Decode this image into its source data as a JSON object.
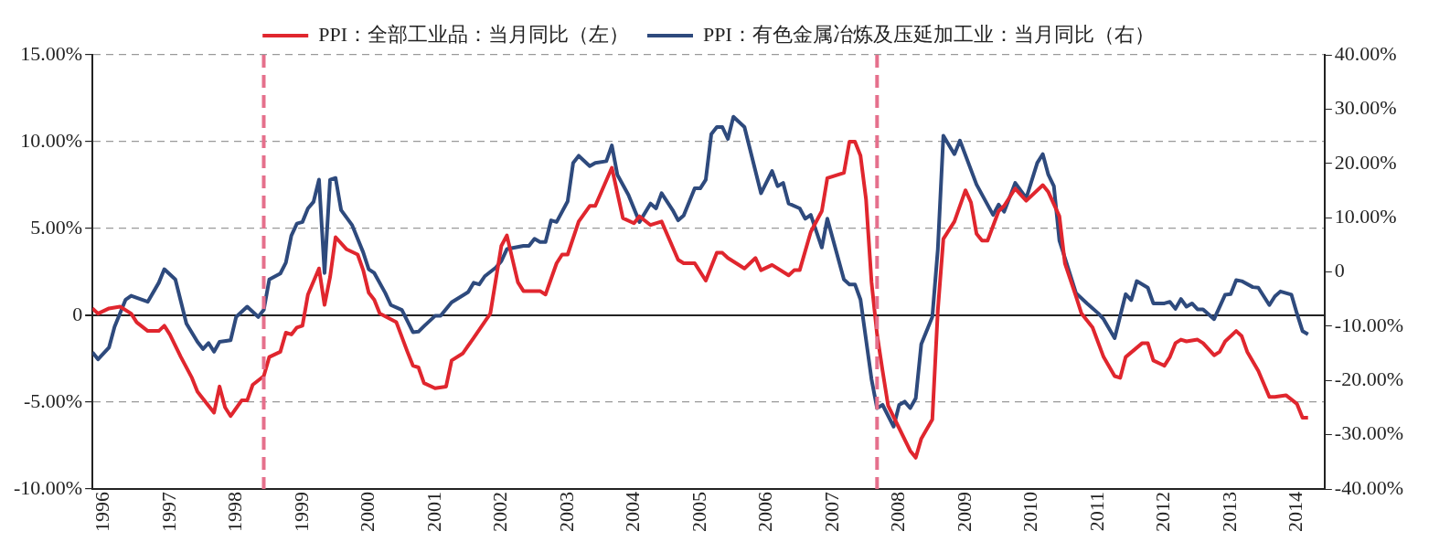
{
  "chart_data": {
    "type": "line",
    "legend": "top",
    "grid": "y",
    "line_style": "solid",
    "marker": "none",
    "xlim": [
      "1996-01",
      "2014-08"
    ],
    "xticks": [
      {
        "value": "1996-03",
        "label": "1996"
      },
      {
        "value": "1997-03",
        "label": "1997"
      },
      {
        "value": "1998-03",
        "label": "1998"
      },
      {
        "value": "1999-03",
        "label": "1999"
      },
      {
        "value": "2000-03",
        "label": "2000"
      },
      {
        "value": "2001-03",
        "label": "2001"
      },
      {
        "value": "2002-03",
        "label": "2002"
      },
      {
        "value": "2003-03",
        "label": "2003"
      },
      {
        "value": "2004-03",
        "label": "2004"
      },
      {
        "value": "2005-03",
        "label": "2005"
      },
      {
        "value": "2006-03",
        "label": "2006"
      },
      {
        "value": "2007-03",
        "label": "2007"
      },
      {
        "value": "2008-03",
        "label": "2008"
      },
      {
        "value": "2009-03",
        "label": "2009"
      },
      {
        "value": "2010-03",
        "label": "2010"
      },
      {
        "value": "2011-03",
        "label": "2011"
      },
      {
        "value": "2012-03",
        "label": "2012"
      },
      {
        "value": "2013-03",
        "label": "2013"
      },
      {
        "value": "2014-03",
        "label": "2014"
      }
    ],
    "ylim": [
      -10,
      15
    ],
    "yticks": [
      {
        "value": -10,
        "label": "-10.00%"
      },
      {
        "value": -5,
        "label": "-5.00%"
      },
      0,
      {
        "value": 5,
        "label": "5.00%"
      },
      {
        "value": 10,
        "label": "10.00%"
      },
      {
        "value": 15,
        "label": "15.00%"
      }
    ],
    "y2lim": [
      -40,
      40
    ],
    "y2ticks": [
      {
        "value": -40,
        "label": "-40.00%"
      },
      {
        "value": -30,
        "label": "-30.00%"
      },
      {
        "value": -20,
        "label": "-20.00%"
      },
      {
        "value": -10,
        "label": "-10.00%"
      },
      0,
      {
        "value": 10,
        "label": "10.00%"
      },
      {
        "value": 20,
        "label": "20.00%"
      },
      {
        "value": 30,
        "label": "30.00%"
      },
      {
        "value": 40,
        "label": "40.00%"
      }
    ],
    "ref_lines": [
      {
        "axis": "x",
        "value": "1998-08",
        "color": "#e5708c",
        "line_style": "dashed"
      },
      {
        "axis": "x",
        "value": "2007-11",
        "color": "#e5708c",
        "line_style": "dashed"
      }
    ],
    "series": [
      {
        "name": "PPI：全部工业品：当月同比（左）",
        "color": "#e0262e",
        "x": [
          "1996-01",
          "1996-02",
          "1996-04",
          "1996-06",
          "1996-08",
          "1996-09",
          "1996-11",
          "1997-01",
          "1997-02",
          "1997-03",
          "1997-05",
          "1997-07",
          "1997-08",
          "1997-09",
          "1997-11",
          "1997-12",
          "1998-01",
          "1998-02",
          "1998-04",
          "1998-05",
          "1998-06",
          "1998-08",
          "1998-09",
          "1998-11",
          "1998-12",
          "1999-01",
          "1999-02",
          "1999-03",
          "1999-04",
          "1999-06",
          "1999-07",
          "1999-08",
          "1999-09",
          "1999-11",
          "2000-01",
          "2000-02",
          "2000-03",
          "2000-04",
          "2000-05",
          "2000-08",
          "2000-10",
          "2000-11",
          "2000-12",
          "2001-01",
          "2001-03",
          "2001-05",
          "2001-06",
          "2001-08",
          "2001-10",
          "2002-01",
          "2002-03",
          "2002-04",
          "2002-06",
          "2002-07",
          "2002-10",
          "2002-11",
          "2003-01",
          "2003-02",
          "2003-03",
          "2003-05",
          "2003-07",
          "2003-08",
          "2003-11",
          "2004-01",
          "2004-03",
          "2004-04",
          "2004-06",
          "2004-08",
          "2004-11",
          "2004-12",
          "2005-02",
          "2005-04",
          "2005-06",
          "2005-07",
          "2005-08",
          "2005-11",
          "2006-01",
          "2006-02",
          "2006-04",
          "2006-07",
          "2006-08",
          "2006-09",
          "2006-11",
          "2007-01",
          "2007-02",
          "2007-05",
          "2007-06",
          "2007-07",
          "2007-08",
          "2007-09",
          "2007-10",
          "2007-11",
          "2007-12",
          "2008-01",
          "2008-03",
          "2008-05",
          "2008-06",
          "2008-07",
          "2008-09",
          "2008-10",
          "2008-11",
          "2009-01",
          "2009-03",
          "2009-04",
          "2009-05",
          "2009-06",
          "2009-07",
          "2009-09",
          "2009-10",
          "2009-12",
          "2010-02",
          "2010-05",
          "2010-06",
          "2010-08",
          "2010-09",
          "2010-11",
          "2010-12",
          "2011-02",
          "2011-04",
          "2011-06",
          "2011-07",
          "2011-08",
          "2011-11",
          "2011-12",
          "2012-01",
          "2012-03",
          "2012-04",
          "2012-05",
          "2012-06",
          "2012-07",
          "2012-09",
          "2012-10",
          "2012-12",
          "2013-01",
          "2013-02",
          "2013-04",
          "2013-05",
          "2013-06",
          "2013-08",
          "2013-10",
          "2013-11",
          "2014-01",
          "2014-03",
          "2014-04",
          "2014-05"
        ],
        "values": [
          0.4,
          0.1,
          0.4,
          0.5,
          0.1,
          -0.4,
          -0.9,
          -0.9,
          -0.6,
          -1.1,
          -2.4,
          -3.6,
          -4.4,
          -4.8,
          -5.6,
          -4.1,
          -5.3,
          -5.8,
          -4.9,
          -4.9,
          -4.0,
          -3.5,
          -2.4,
          -2.1,
          -1.0,
          -1.1,
          -0.7,
          -0.6,
          1.2,
          2.7,
          0.6,
          2.2,
          4.5,
          3.8,
          3.5,
          2.6,
          1.3,
          0.9,
          0.1,
          -0.4,
          -2.1,
          -2.9,
          -3.0,
          -3.9,
          -4.2,
          -4.1,
          -2.6,
          -2.2,
          -1.3,
          0.1,
          4.0,
          4.6,
          1.9,
          1.4,
          1.4,
          1.2,
          3.0,
          3.5,
          3.5,
          5.4,
          6.3,
          6.3,
          8.5,
          5.6,
          5.3,
          5.7,
          5.2,
          5.4,
          3.2,
          3.0,
          3.0,
          2.0,
          3.6,
          3.6,
          3.3,
          2.7,
          3.3,
          2.6,
          2.9,
          2.3,
          2.6,
          2.6,
          4.8,
          6.0,
          7.9,
          8.2,
          10.0,
          10.0,
          9.2,
          6.7,
          1.9,
          -1.1,
          -3.2,
          -5.2,
          -6.5,
          -7.8,
          -8.2,
          -7.1,
          -6.0,
          0.3,
          4.4,
          5.4,
          7.2,
          6.5,
          4.7,
          4.3,
          4.3,
          6.0,
          6.3,
          7.3,
          6.6,
          7.5,
          7.1,
          5.7,
          3.0,
          1.1,
          0.1,
          -0.7,
          -2.4,
          -3.5,
          -3.6,
          -2.4,
          -1.6,
          -1.6,
          -2.6,
          -2.9,
          -2.4,
          -1.6,
          -1.4,
          -1.5,
          -1.4,
          -1.6,
          -2.3,
          -2.1,
          -1.5,
          -0.9,
          -1.2,
          -2.1,
          -3.2,
          -4.7,
          -4.7,
          -4.6,
          -5.1,
          -5.9,
          -5.9
        ]
      },
      {
        "name": "PPI：有色金属冶炼及压延加工业：当月同比（右）",
        "color": "#2e4a7d",
        "axis": "y2",
        "x": [
          "1996-01",
          "1996-02",
          "1996-04",
          "1996-05",
          "1996-07",
          "1996-08",
          "1996-11",
          "1997-01",
          "1997-02",
          "1997-04",
          "1997-06",
          "1997-08",
          "1997-09",
          "1997-10",
          "1997-11",
          "1997-12",
          "1998-02",
          "1998-03",
          "1998-05",
          "1998-07",
          "1998-08",
          "1998-09",
          "1998-11",
          "1998-12",
          "1999-01",
          "1999-02",
          "1999-03",
          "1999-04",
          "1999-05",
          "1999-06",
          "1999-07",
          "1999-08",
          "1999-09",
          "1999-10",
          "1999-12",
          "2000-02",
          "2000-03",
          "2000-04",
          "2000-06",
          "2000-07",
          "2000-09",
          "2000-11",
          "2000-12",
          "2001-01",
          "2001-03",
          "2001-04",
          "2001-06",
          "2001-09",
          "2001-10",
          "2001-11",
          "2001-12",
          "2002-02",
          "2002-03",
          "2002-04",
          "2002-07",
          "2002-08",
          "2002-09",
          "2002-10",
          "2002-11",
          "2002-12",
          "2003-01",
          "2003-03",
          "2003-04",
          "2003-05",
          "2003-07",
          "2003-08",
          "2003-10",
          "2003-11",
          "2003-12",
          "2004-02",
          "2004-04",
          "2004-06",
          "2004-07",
          "2004-08",
          "2004-10",
          "2004-11",
          "2004-12",
          "2005-02",
          "2005-03",
          "2005-04",
          "2005-05",
          "2005-06",
          "2005-07",
          "2005-08",
          "2005-09",
          "2005-11",
          "2006-02",
          "2006-04",
          "2006-05",
          "2006-06",
          "2006-07",
          "2006-09",
          "2006-10",
          "2006-11",
          "2007-01",
          "2007-02",
          "2007-05",
          "2007-06",
          "2007-07",
          "2007-08",
          "2007-10",
          "2007-11",
          "2007-12",
          "2008-02",
          "2008-03",
          "2008-04",
          "2008-05",
          "2008-06",
          "2008-07",
          "2008-09",
          "2008-10",
          "2008-11",
          "2009-01",
          "2009-02",
          "2009-05",
          "2009-08",
          "2009-09",
          "2009-10",
          "2009-12",
          "2010-02",
          "2010-04",
          "2010-05",
          "2010-06",
          "2010-07",
          "2010-08",
          "2010-11",
          "2011-01",
          "2011-03",
          "2011-04",
          "2011-06",
          "2011-08",
          "2011-09",
          "2011-10",
          "2011-12",
          "2012-01",
          "2012-03",
          "2012-04",
          "2012-05",
          "2012-06",
          "2012-07",
          "2012-08",
          "2012-09",
          "2012-10",
          "2012-12",
          "2013-02",
          "2013-03",
          "2013-04",
          "2013-05",
          "2013-07",
          "2013-08",
          "2013-10",
          "2013-11",
          "2013-12",
          "2014-02",
          "2014-03",
          "2014-04",
          "2014-05"
        ],
        "values": [
          -14.8,
          -16.1,
          -13.9,
          -10.1,
          -5.1,
          -4.4,
          -5.5,
          -2.0,
          0.5,
          -1.4,
          -9.5,
          -12.9,
          -14.2,
          -13.1,
          -14.7,
          -12.9,
          -12.6,
          -8.3,
          -6.4,
          -8.3,
          -7.0,
          -1.4,
          -0.3,
          1.7,
          6.7,
          8.9,
          9.2,
          11.7,
          12.9,
          17.0,
          -0.2,
          17.0,
          17.3,
          11.4,
          8.6,
          3.6,
          0.5,
          -0.2,
          -3.9,
          -6.1,
          -7.0,
          -11.1,
          -11.0,
          -10.0,
          -8.1,
          -8.1,
          -5.6,
          -3.7,
          -2.0,
          -2.3,
          -0.8,
          0.8,
          2.0,
          4.2,
          4.8,
          4.8,
          6.1,
          5.5,
          5.5,
          9.5,
          9.2,
          13.0,
          20.1,
          21.4,
          19.5,
          20.1,
          20.4,
          23.3,
          17.9,
          14.2,
          9.2,
          12.6,
          11.7,
          14.5,
          11.4,
          9.5,
          10.4,
          15.4,
          15.4,
          17.0,
          25.4,
          26.7,
          26.7,
          24.5,
          28.6,
          26.7,
          14.5,
          18.6,
          15.8,
          16.4,
          12.6,
          11.7,
          9.8,
          10.5,
          4.5,
          9.8,
          -1.4,
          -2.3,
          -2.3,
          -5.1,
          -19.8,
          -25.1,
          -24.5,
          -28.5,
          -24.5,
          -23.9,
          -25.1,
          -23.3,
          -13.3,
          -8.3,
          4.2,
          25.1,
          21.7,
          24.2,
          16.1,
          10.5,
          12.4,
          11.1,
          16.4,
          13.6,
          20.1,
          21.7,
          17.9,
          15.8,
          5.8,
          -3.9,
          -5.8,
          -7.6,
          -8.7,
          -12.2,
          -4.1,
          -5.2,
          -1.7,
          -2.9,
          -5.8,
          -5.8,
          -5.5,
          -6.8,
          -5.0,
          -6.4,
          -5.8,
          -6.9,
          -6.9,
          -8.7,
          -4.2,
          -4.1,
          -1.5,
          -1.7,
          -2.8,
          -2.9,
          -6.1,
          -4.5,
          -3.6,
          -4.2,
          -7.7,
          -10.9,
          -11.5
        ]
      }
    ]
  }
}
